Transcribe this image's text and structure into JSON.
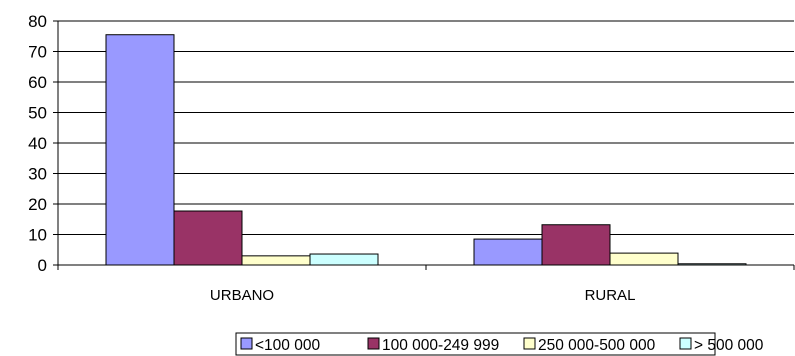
{
  "chart_data": {
    "type": "bar",
    "categories": [
      "URBANO",
      "RURAL"
    ],
    "series": [
      {
        "name": "<100 000",
        "values": [
          75.5,
          8.5
        ],
        "color": "#9999ff"
      },
      {
        "name": "100 000-249 999",
        "values": [
          17.7,
          13.2
        ],
        "color": "#993366"
      },
      {
        "name": "250 000-500 000",
        "values": [
          3.0,
          3.9
        ],
        "color": "#ffffcc"
      },
      {
        "name": "> 500 000",
        "values": [
          3.6,
          0.4
        ],
        "color": "#ccffff"
      }
    ],
    "ylim": [
      0,
      80
    ],
    "yticks": [
      "0",
      "10",
      "20",
      "30",
      "40",
      "50",
      "60",
      "70",
      "80"
    ],
    "grid": true,
    "legend": "bottom",
    "xlabel": "",
    "ylabel": ""
  }
}
